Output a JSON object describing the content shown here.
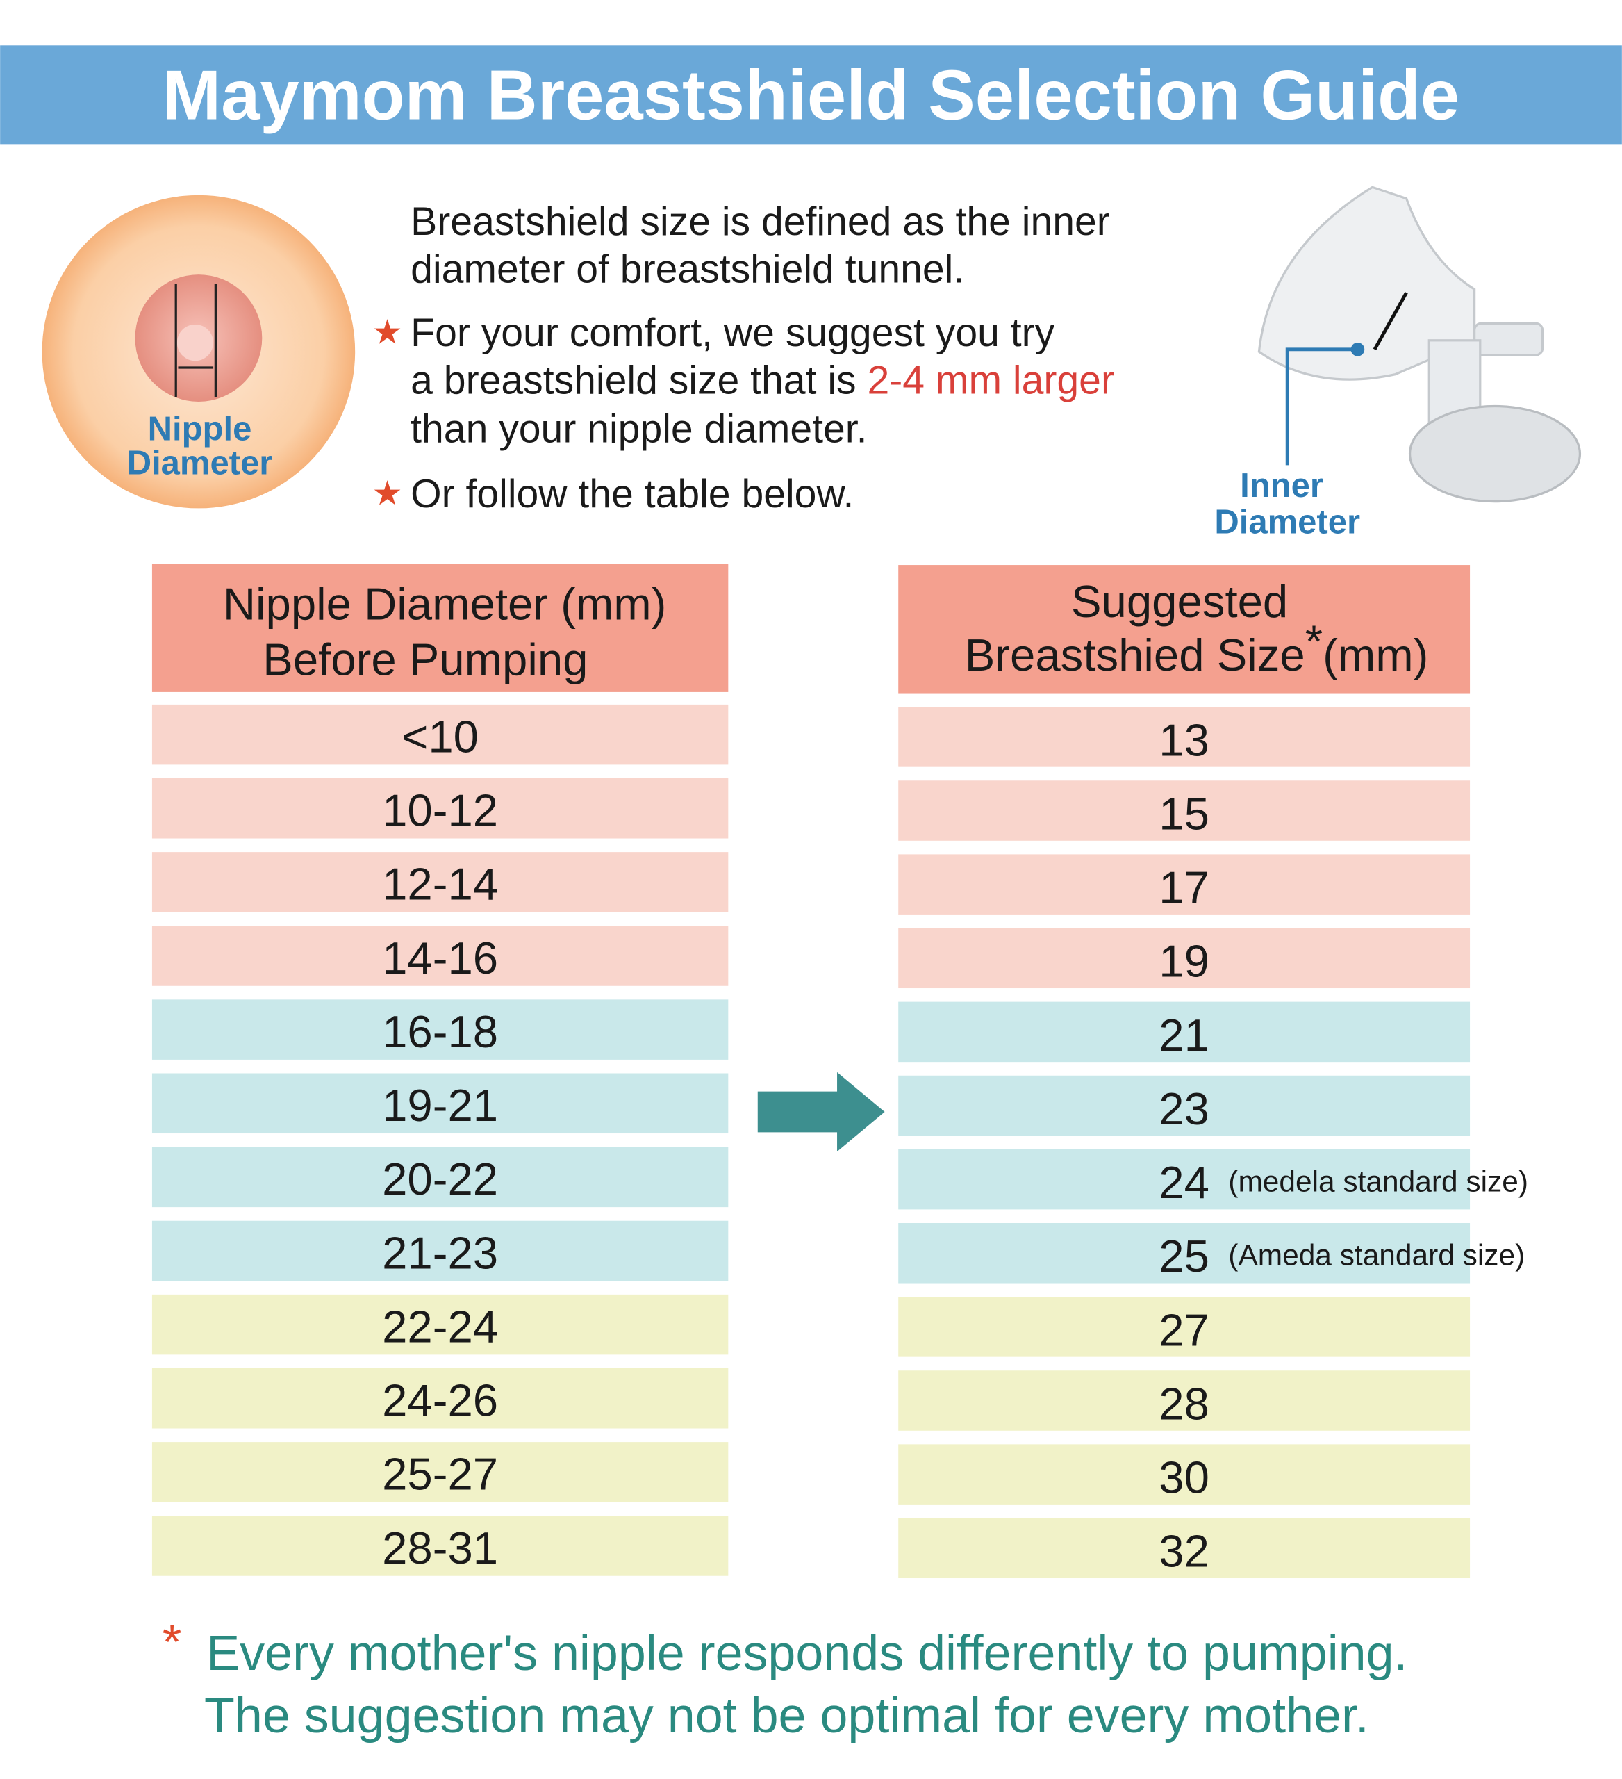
{
  "header": {
    "title": "Maymom Breastshield Selection Guide"
  },
  "nipple_label": [
    "Nipple",
    "Diameter"
  ],
  "intro": {
    "definition": [
      "Breastshield size is defined as the inner",
      "diameter of breastshield tunnel."
    ],
    "tip1": {
      "line1": "For your comfort, we suggest you try",
      "line2_start": "a breastshield size that is ",
      "line2_highlight": "2-4 mm larger",
      "line3": "than your nipple diameter."
    },
    "tip2": "Or follow the table below.",
    "bullet": "★"
  },
  "inner_label": [
    "Inner",
    "Diameter"
  ],
  "table": {
    "left_header": [
      "Nipple Diameter (mm)",
      "Before Pumping"
    ],
    "right_header": {
      "line1": "Suggested",
      "line2": "Breastshied Size",
      "mark": "*",
      "unit": "(mm)"
    },
    "rows": [
      {
        "nipple": "<10",
        "size": 13,
        "color": "#f9d5cc"
      },
      {
        "nipple": "10-12",
        "size": 15,
        "color": "#f9d5cc"
      },
      {
        "nipple": "12-14",
        "size": 17,
        "color": "#f9d5cc"
      },
      {
        "nipple": "14-16",
        "size": 19,
        "color": "#f9d5cc"
      },
      {
        "nipple": "16-18",
        "size": 21,
        "color": "#c9e8ea"
      },
      {
        "nipple": "19-21",
        "size": 23,
        "color": "#c9e8ea"
      },
      {
        "nipple": "20-22",
        "size": 24,
        "note": "(medela standard size)",
        "color": "#c9e8ea"
      },
      {
        "nipple": "21-23",
        "size": 25,
        "note": "(Ameda standard size)",
        "color": "#c9e8ea"
      },
      {
        "nipple": "22-24",
        "size": 27,
        "color": "#f1f2c8"
      },
      {
        "nipple": "24-26",
        "size": 28,
        "color": "#f1f2c8"
      },
      {
        "nipple": "25-27",
        "size": 30,
        "color": "#f1f2c8"
      },
      {
        "nipple": "28-31",
        "size": 32,
        "color": "#f1f2c8"
      }
    ]
  },
  "footnote": {
    "mark": "*",
    "lines": [
      "Every mother's nipple responds differently to pumping.",
      "The suggestion may not be optimal for every mother."
    ]
  }
}
